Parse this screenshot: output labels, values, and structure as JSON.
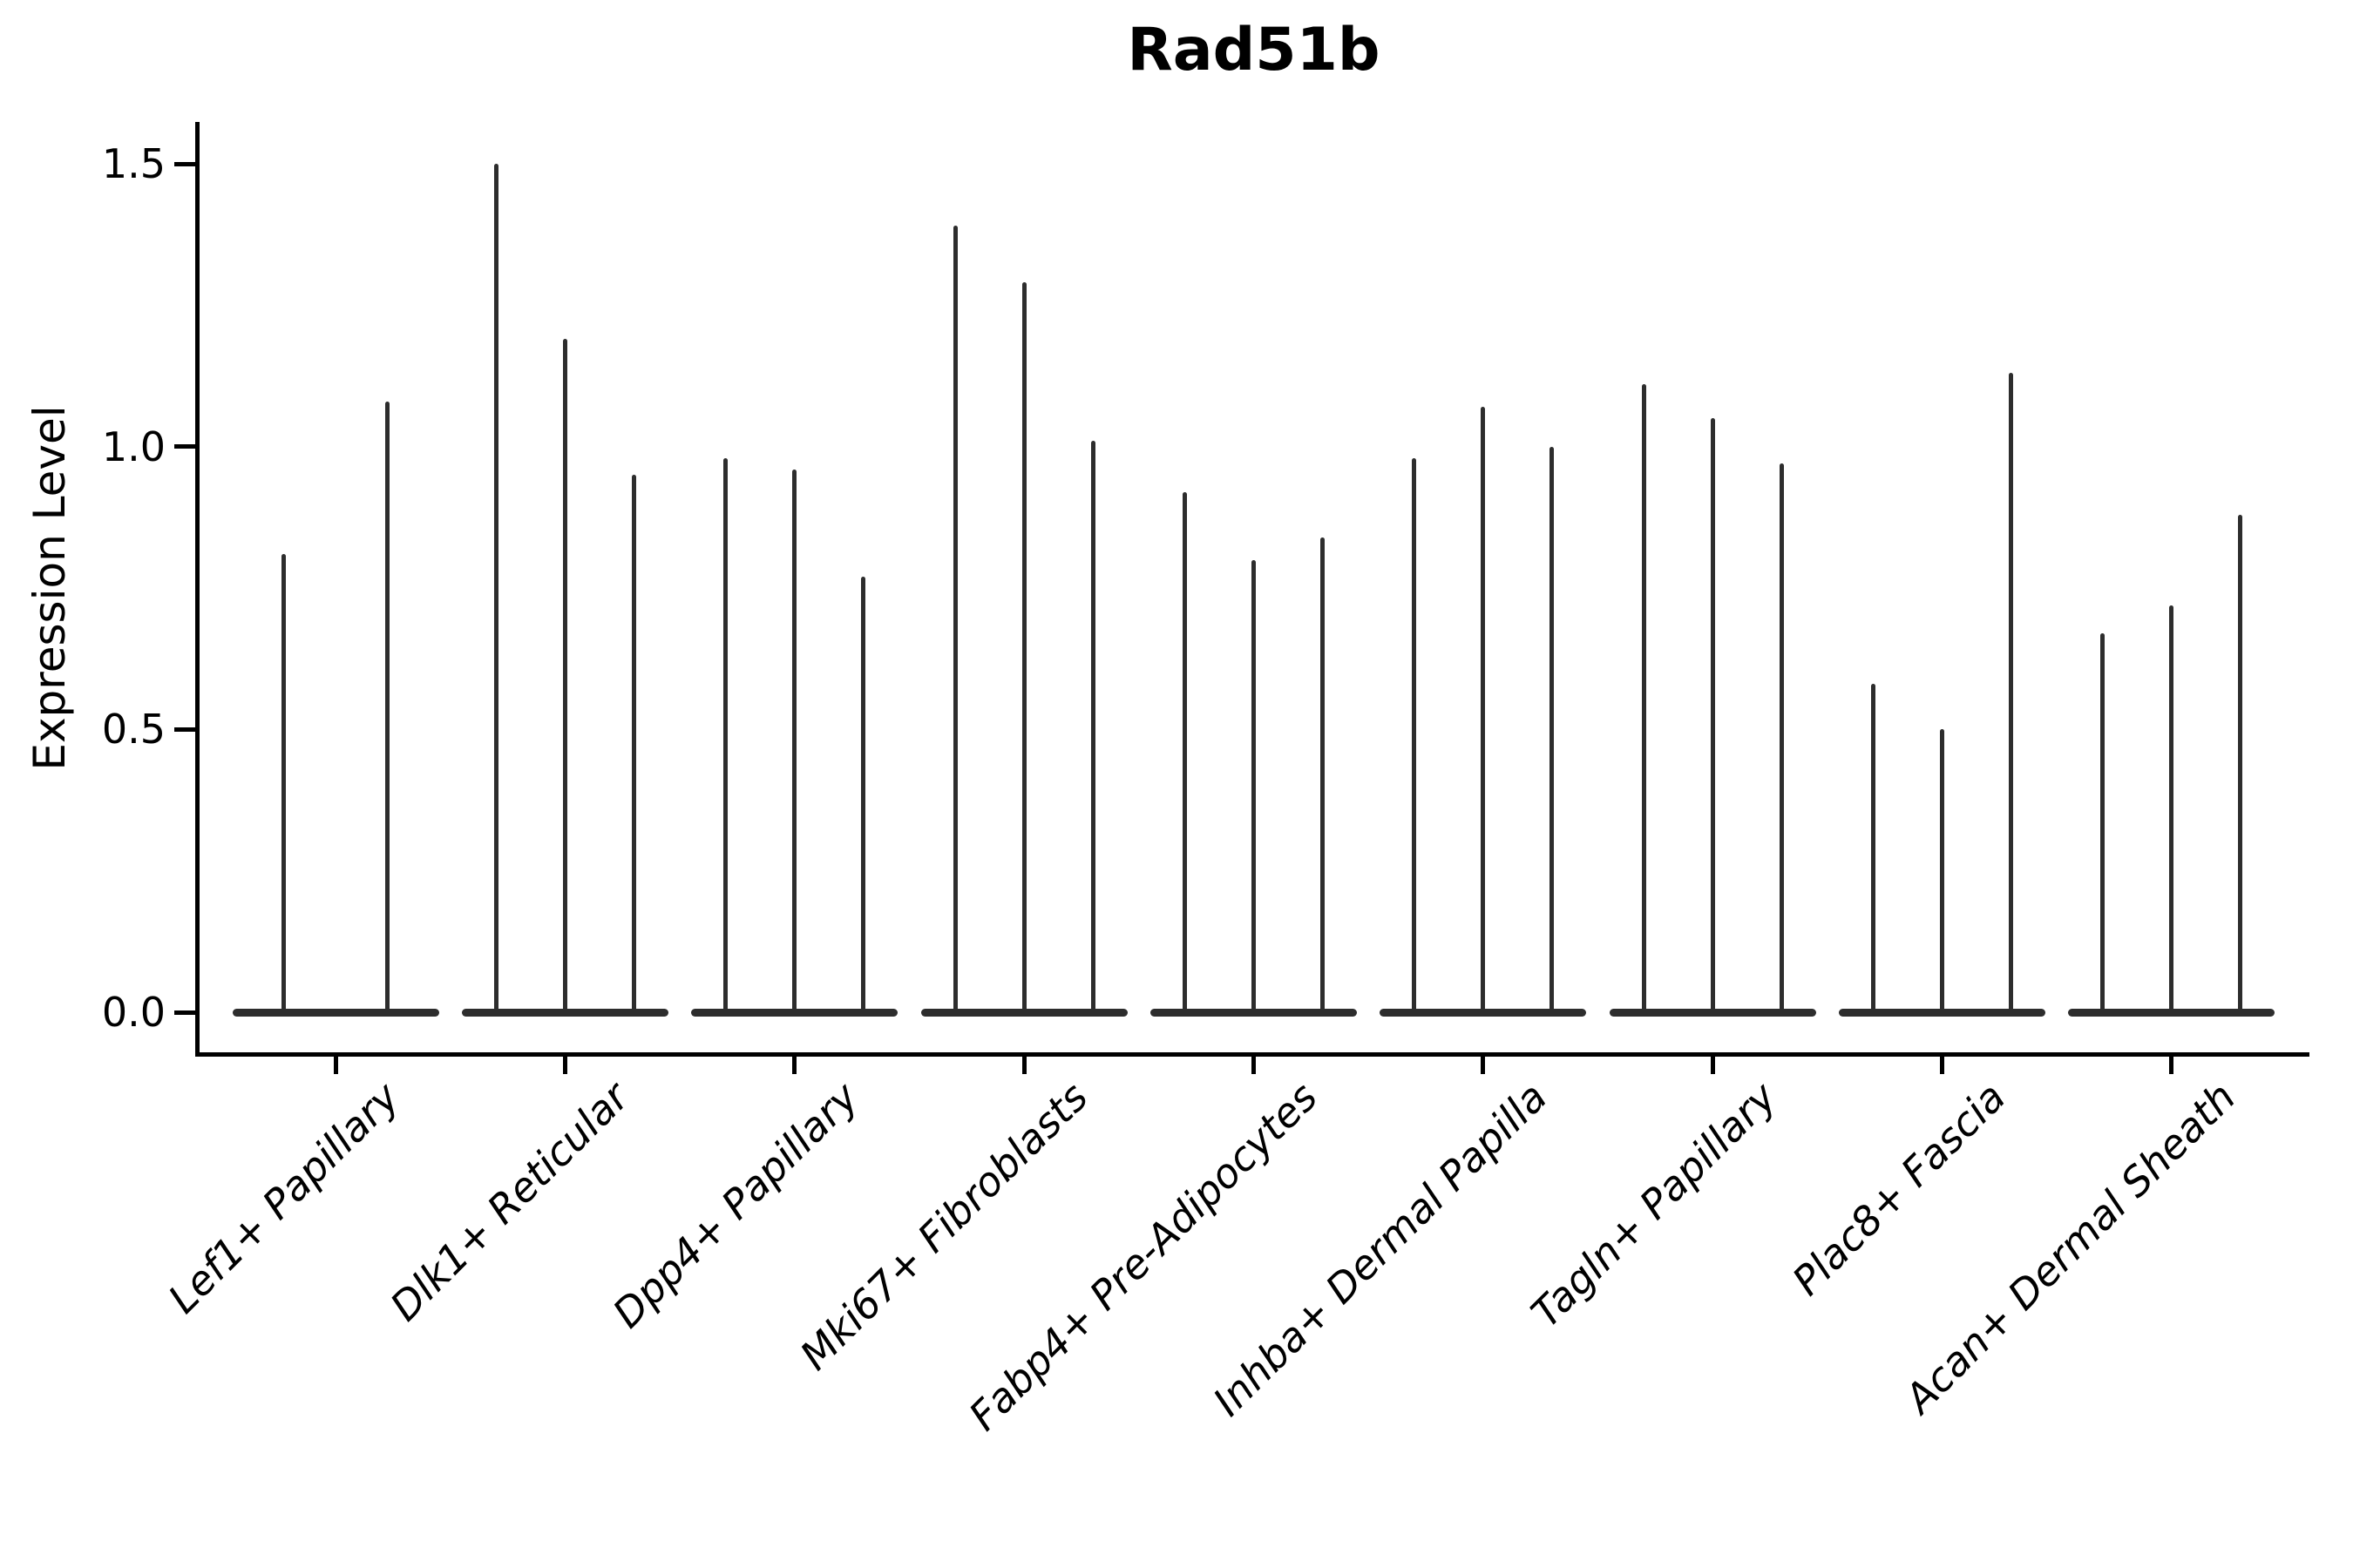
{
  "title": "Rad51b",
  "y_axis": {
    "label": "Expression Level",
    "tick_labels": [
      "0.0",
      "0.5",
      "1.0",
      "1.5"
    ],
    "tick_values": [
      0.0,
      0.5,
      1.0,
      1.5
    ]
  },
  "chart_data": {
    "type": "violin",
    "title": "Rad51b",
    "xlabel": "",
    "ylabel": "Expression Level",
    "categories": [
      "Lef1+ Papillary",
      "Dlk1+ Reticular",
      "Dpp4+ Papillary",
      "Mki67+ Fibroblasts",
      "Fabp4+ Pre-Adipocytes",
      "Inhba+ Dermal Papilla",
      "Tagln+ Papillary",
      "Plac8+ Fascia",
      "Acan+ Dermal Sheath"
    ],
    "violins": [
      {
        "category": "Lef1+ Papillary",
        "max_values": [
          0.81,
          1.08
        ]
      },
      {
        "category": "Dlk1+ Reticular",
        "max_values": [
          1.5,
          1.19,
          0.95
        ]
      },
      {
        "category": "Dpp4+ Papillary",
        "max_values": [
          0.98,
          0.96,
          0.77
        ]
      },
      {
        "category": "Mki67+ Fibroblasts",
        "max_values": [
          1.39,
          1.29,
          1.01
        ]
      },
      {
        "category": "Fabp4+ Pre-Adipocytes",
        "max_values": [
          0.92,
          0.8,
          0.84
        ]
      },
      {
        "category": "Inhba+ Dermal Papilla",
        "max_values": [
          0.98,
          1.07,
          1.0
        ]
      },
      {
        "category": "Tagln+ Papillary",
        "max_values": [
          1.11,
          1.05,
          0.97
        ]
      },
      {
        "category": "Plac8+ Fascia",
        "max_values": [
          0.58,
          0.5,
          1.13
        ]
      },
      {
        "category": "Acan+ Dermal Sheath",
        "max_values": [
          0.67,
          0.72,
          0.88
        ]
      }
    ],
    "shape_note": "each violin is a flat density bulge at expression 0 with a thin tail rising to its max value",
    "yticks": [
      0.0,
      0.5,
      1.0,
      1.5
    ],
    "ylim": [
      0,
      1.57
    ],
    "grid": false,
    "legend": null,
    "style": {
      "violin_color": "#2d2d2d",
      "axis_color": "#000000",
      "background": "#ffffff"
    }
  }
}
